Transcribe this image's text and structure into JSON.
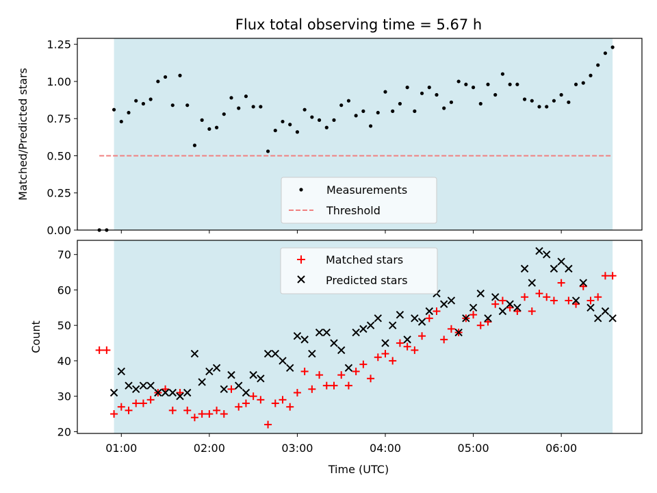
{
  "chart_data": [
    {
      "type": "scatter",
      "title": "Flux total observing time = 5.67 h",
      "xlabel": "",
      "ylabel": "Matched/Predicted stars",
      "ylim": [
        0.0,
        1.29
      ],
      "yticks": [
        0.0,
        0.25,
        0.5,
        0.75,
        1.0,
        1.25
      ],
      "ytick_labels": [
        "0.00",
        "0.25",
        "0.50",
        "0.75",
        "1.00",
        "1.25"
      ],
      "observing_window": {
        "start": "00:55",
        "end": "06:35"
      },
      "shaded_color": "#d4eaf0",
      "legend": {
        "placement": "lower center",
        "entries": [
          {
            "label": "Measurements",
            "marker": "dot",
            "color": "#000000"
          },
          {
            "label": "Threshold",
            "marker": "dashed-line",
            "color": "#f08080"
          }
        ]
      },
      "threshold": {
        "name": "Threshold",
        "value": 0.5,
        "x_range": [
          "00:45",
          "06:35"
        ],
        "color": "#f08080",
        "style": "dashed"
      },
      "series": [
        {
          "name": "Measurements",
          "color": "#000000",
          "x": [
            "00:45",
            "00:50",
            "00:55",
            "01:00",
            "01:05",
            "01:10",
            "01:15",
            "01:20",
            "01:25",
            "01:30",
            "01:35",
            "01:40",
            "01:45",
            "01:50",
            "01:55",
            "02:00",
            "02:05",
            "02:10",
            "02:15",
            "02:20",
            "02:25",
            "02:30",
            "02:35",
            "02:40",
            "02:45",
            "02:50",
            "02:55",
            "03:00",
            "03:05",
            "03:10",
            "03:15",
            "03:20",
            "03:25",
            "03:30",
            "03:35",
            "03:40",
            "03:45",
            "03:50",
            "03:55",
            "04:00",
            "04:05",
            "04:10",
            "04:15",
            "04:20",
            "04:25",
            "04:30",
            "04:35",
            "04:40",
            "04:45",
            "04:50",
            "04:55",
            "05:00",
            "05:05",
            "05:10",
            "05:15",
            "05:20",
            "05:25",
            "05:30",
            "05:35",
            "05:40",
            "05:45",
            "05:50",
            "05:55",
            "06:00",
            "06:05",
            "06:10",
            "06:15",
            "06:20",
            "06:25",
            "06:30",
            "06:35"
          ],
          "y": [
            0.0,
            0.0,
            0.81,
            0.73,
            0.79,
            0.87,
            0.85,
            0.88,
            1.0,
            1.03,
            0.84,
            1.04,
            0.84,
            0.57,
            0.74,
            0.68,
            0.69,
            0.78,
            0.89,
            0.82,
            0.9,
            0.83,
            0.83,
            0.53,
            0.67,
            0.73,
            0.71,
            0.66,
            0.81,
            0.76,
            0.74,
            0.69,
            0.74,
            0.84,
            0.87,
            0.77,
            0.8,
            0.7,
            0.79,
            0.93,
            0.8,
            0.85,
            0.96,
            0.8,
            0.92,
            0.96,
            0.91,
            0.82,
            0.86,
            1.0,
            0.98,
            0.96,
            0.85,
            0.98,
            0.91,
            1.05,
            0.98,
            0.98,
            0.88,
            0.87,
            0.83,
            0.83,
            0.87,
            0.91,
            0.86,
            0.98,
            0.99,
            1.04,
            1.11,
            1.19,
            1.23
          ]
        }
      ]
    },
    {
      "type": "scatter",
      "title": "",
      "xlabel": "Time (UTC)",
      "ylabel": "Count",
      "ylim": [
        19.5,
        74
      ],
      "yticks": [
        20,
        30,
        40,
        50,
        60,
        70
      ],
      "xticks": [
        "01:00",
        "02:00",
        "03:00",
        "04:00",
        "05:00",
        "06:00"
      ],
      "x_range": [
        "00:30",
        "06:55"
      ],
      "legend": {
        "placement": "upper center",
        "entries": [
          {
            "label": "Matched stars",
            "marker": "plus",
            "color": "#ff0000"
          },
          {
            "label": "Predicted stars",
            "marker": "x",
            "color": "#000000"
          }
        ]
      },
      "series": [
        {
          "name": "Matched stars",
          "color": "#ff0000",
          "marker": "plus",
          "x": [
            "00:45",
            "00:50",
            "00:55",
            "01:00",
            "01:05",
            "01:10",
            "01:15",
            "01:20",
            "01:25",
            "01:30",
            "01:35",
            "01:40",
            "01:45",
            "01:50",
            "01:55",
            "02:00",
            "02:05",
            "02:10",
            "02:15",
            "02:20",
            "02:25",
            "02:30",
            "02:35",
            "02:40",
            "02:45",
            "02:50",
            "02:55",
            "03:00",
            "03:05",
            "03:10",
            "03:15",
            "03:20",
            "03:25",
            "03:30",
            "03:35",
            "03:40",
            "03:45",
            "03:50",
            "03:55",
            "04:00",
            "04:05",
            "04:10",
            "04:15",
            "04:20",
            "04:25",
            "04:30",
            "04:35",
            "04:40",
            "04:45",
            "04:50",
            "04:55",
            "05:00",
            "05:05",
            "05:10",
            "05:15",
            "05:20",
            "05:25",
            "05:30",
            "05:35",
            "05:40",
            "05:45",
            "05:50",
            "05:55",
            "06:00",
            "06:05",
            "06:10",
            "06:15",
            "06:20",
            "06:25",
            "06:30",
            "06:35"
          ],
          "y": [
            43,
            43,
            25,
            27,
            26,
            28,
            28,
            29,
            31,
            32,
            26,
            31,
            26,
            24,
            25,
            25,
            26,
            25,
            32,
            27,
            28,
            30,
            29,
            22,
            28,
            29,
            27,
            31,
            37,
            32,
            36,
            33,
            33,
            36,
            33,
            37,
            39,
            35,
            41,
            42,
            40,
            45,
            44,
            43,
            47,
            52,
            54,
            46,
            49,
            48,
            52,
            53,
            50,
            51,
            56,
            57,
            55,
            54,
            58,
            54,
            59,
            58,
            57,
            62,
            57,
            56,
            61,
            57,
            58,
            64,
            64
          ]
        },
        {
          "name": "Predicted stars",
          "color": "#000000",
          "marker": "x",
          "x": [
            "00:55",
            "01:00",
            "01:05",
            "01:10",
            "01:15",
            "01:20",
            "01:25",
            "01:30",
            "01:35",
            "01:40",
            "01:45",
            "01:50",
            "01:55",
            "02:00",
            "02:05",
            "02:10",
            "02:15",
            "02:20",
            "02:25",
            "02:30",
            "02:35",
            "02:40",
            "02:45",
            "02:50",
            "02:55",
            "03:00",
            "03:05",
            "03:10",
            "03:15",
            "03:20",
            "03:25",
            "03:30",
            "03:35",
            "03:40",
            "03:45",
            "03:50",
            "03:55",
            "04:00",
            "04:05",
            "04:10",
            "04:15",
            "04:20",
            "04:25",
            "04:30",
            "04:35",
            "04:40",
            "04:45",
            "04:50",
            "04:55",
            "05:00",
            "05:05",
            "05:10",
            "05:15",
            "05:20",
            "05:25",
            "05:30",
            "05:35",
            "05:40",
            "05:45",
            "05:50",
            "05:55",
            "06:00",
            "06:05",
            "06:10",
            "06:15",
            "06:20",
            "06:25",
            "06:30",
            "06:35"
          ],
          "y": [
            31,
            37,
            33,
            32,
            33,
            33,
            31,
            31,
            31,
            30,
            31,
            42,
            34,
            37,
            38,
            32,
            36,
            33,
            31,
            36,
            35,
            42,
            42,
            40,
            38,
            47,
            46,
            42,
            48,
            48,
            45,
            43,
            38,
            48,
            49,
            50,
            52,
            45,
            50,
            53,
            46,
            52,
            51,
            54,
            59,
            56,
            57,
            48,
            52,
            55,
            59,
            52,
            58,
            54,
            56,
            55,
            66,
            62,
            71,
            70,
            66,
            68,
            66,
            57,
            62,
            55,
            52,
            54,
            52
          ]
        }
      ]
    }
  ]
}
